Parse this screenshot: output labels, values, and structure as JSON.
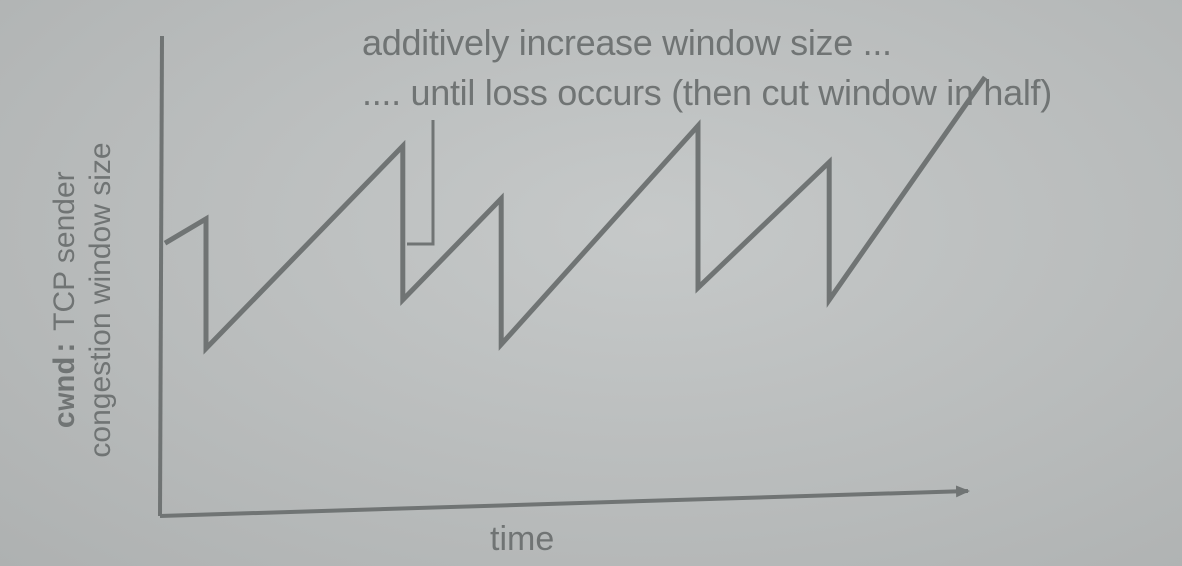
{
  "chart_data": {
    "type": "line",
    "xlabel": "time",
    "ylabel_var": "cwnd:",
    "ylabel_line1": "TCP sender",
    "ylabel_line2": "congestion window size",
    "annotations": [
      "additively increase window size ...",
      ".... until loss occurs (then cut window in half)"
    ],
    "xlim": [
      0,
      100
    ],
    "ylim": [
      0,
      100
    ],
    "series": [
      {
        "x": [
          0,
          5,
          5,
          29,
          29,
          41,
          41,
          65,
          65,
          81,
          81,
          100
        ],
        "y": [
          56,
          62,
          30,
          80,
          42,
          67,
          31,
          85,
          45,
          76,
          42,
          97
        ]
      }
    ]
  },
  "colors": {
    "ink": "#707474",
    "background": "#bbbebe"
  }
}
